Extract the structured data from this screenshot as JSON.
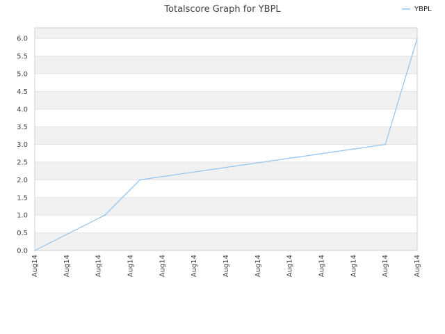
{
  "chart_data": {
    "type": "line",
    "title": "Totalscore Graph for YBPL",
    "xlabel": "",
    "ylabel": "",
    "ylim": [
      0,
      6.3
    ],
    "yticks": [
      "0.0",
      "0.5",
      "1.0",
      "1.5",
      "2.0",
      "2.5",
      "3.0",
      "3.5",
      "4.0",
      "4.5",
      "5.0",
      "5.5",
      "6.0"
    ],
    "xticks": [
      "Aug14",
      "Aug14",
      "Aug14",
      "Aug14",
      "Aug14",
      "Aug14",
      "Aug14",
      "Aug14",
      "Aug14",
      "Aug14",
      "Aug14",
      "Aug14",
      "Aug14"
    ],
    "grid": true,
    "legend": "top-right",
    "series": [
      {
        "name": "YBPL",
        "color": "#8fc3ee",
        "points": [
          {
            "x": 0.0,
            "y": 0.0
          },
          {
            "x": 2.2,
            "y": 1.0
          },
          {
            "x": 3.3,
            "y": 2.0
          },
          {
            "x": 11.0,
            "y": 3.0
          },
          {
            "x": 12.0,
            "y": 6.0
          }
        ]
      }
    ]
  }
}
